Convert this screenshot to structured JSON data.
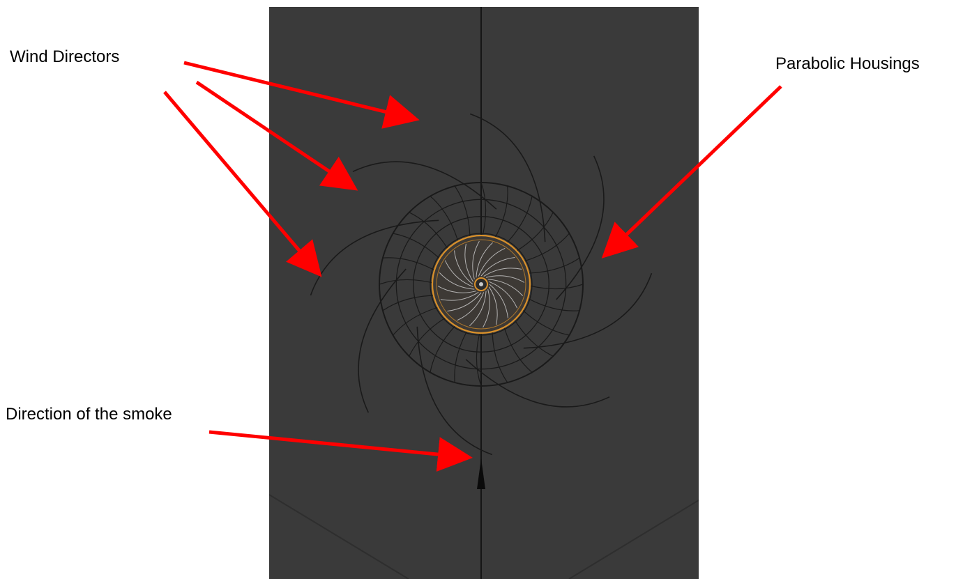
{
  "labels": {
    "wind_directors": "Wind Directors",
    "parabolic_housings": "Parabolic Housings",
    "smoke_direction": "Direction of the smoke"
  },
  "colors": {
    "viewport_bg": "#3a3a3a",
    "wire": "#1a1a1a",
    "selected_ring": "#d9902a",
    "blades": "#c9c9c9",
    "arrow": "#ff0000"
  },
  "icons": {
    "smoke_marker": "triangle-up-icon",
    "pointer": "arrow-icon"
  },
  "scene": {
    "wind_director_count": 8,
    "housing_meridians": 24,
    "housing_rings": 6,
    "blade_count": 20
  }
}
